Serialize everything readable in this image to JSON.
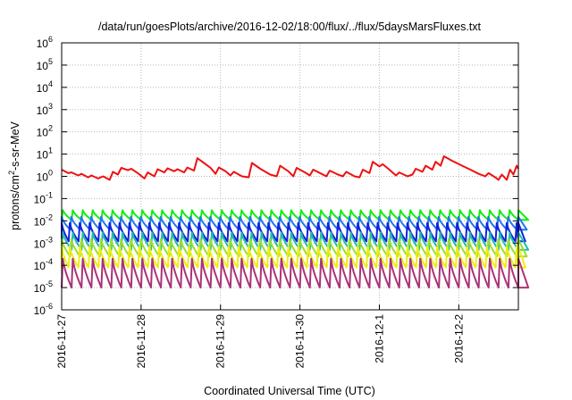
{
  "chart_data": {
    "type": "line",
    "title": "/data/run/goesPlots/archive/2016-12-02/18:00/flux/../flux/5daysMarsFluxes.txt",
    "xlabel": "Coordinated Universal Time (UTC)",
    "ylabel": {
      "base": "protons/cm",
      "sup": "2",
      "rest": "-s-sr-MeV"
    },
    "yscale": "log",
    "ylim": [
      1e-06,
      1000000.0
    ],
    "y_ticks": [
      {
        "exp": "-6",
        "value": -6
      },
      {
        "exp": "-5",
        "value": -5
      },
      {
        "exp": "-4",
        "value": -4
      },
      {
        "exp": "-3",
        "value": -3
      },
      {
        "exp": "-2",
        "value": -2
      },
      {
        "exp": "-1",
        "value": -1
      },
      {
        "exp": "0",
        "value": 0
      },
      {
        "exp": "1",
        "value": 1
      },
      {
        "exp": "2",
        "value": 2
      },
      {
        "exp": "3",
        "value": 3
      },
      {
        "exp": "4",
        "value": 4
      },
      {
        "exp": "5",
        "value": 5
      },
      {
        "exp": "6",
        "value": 6
      }
    ],
    "y_tick_base": "10",
    "xlim": [
      "2016-11-27",
      "2016-12-02T18:00"
    ],
    "x_ticks": [
      "2016-11-27",
      "2016-11-28",
      "2016-11-29",
      "2016-11-30",
      "2016-12-1",
      "2016-12-2"
    ],
    "grid": true,
    "series": [
      {
        "color": "#ee1111",
        "points": [
          [
            "2016-11-27T00:00",
            2.0
          ],
          [
            "2016-11-27T02:00",
            1.4
          ],
          [
            "2016-11-27T03:00",
            1.5
          ],
          [
            "2016-11-27T05:00",
            1.1
          ],
          [
            "2016-11-27T06:00",
            1.3
          ],
          [
            "2016-11-27T08:00",
            0.9
          ],
          [
            "2016-11-27T09:00",
            1.1
          ],
          [
            "2016-11-27T11:00",
            0.8
          ],
          [
            "2016-11-27T12:30",
            1.0
          ],
          [
            "2016-11-27T14:30",
            0.7
          ],
          [
            "2016-11-27T15:30",
            1.6
          ],
          [
            "2016-11-27T17:00",
            1.2
          ],
          [
            "2016-11-27T18:00",
            2.4
          ],
          [
            "2016-11-27T20:00",
            1.9
          ],
          [
            "2016-11-27T21:00",
            2.2
          ],
          [
            "2016-11-27T23:00",
            1.4
          ],
          [
            "2016-11-28T01:00",
            0.8
          ],
          [
            "2016-11-28T02:00",
            1.5
          ],
          [
            "2016-11-28T04:00",
            1.0
          ],
          [
            "2016-11-28T05:00",
            2.1
          ],
          [
            "2016-11-28T07:00",
            1.5
          ],
          [
            "2016-11-28T08:00",
            2.3
          ],
          [
            "2016-11-28T10:00",
            1.7
          ],
          [
            "2016-11-28T11:00",
            2.1
          ],
          [
            "2016-11-28T13:00",
            1.5
          ],
          [
            "2016-11-28T14:00",
            2.5
          ],
          [
            "2016-11-28T16:00",
            1.8
          ],
          [
            "2016-11-28T17:00",
            6.5
          ],
          [
            "2016-11-28T19:00",
            4.0
          ],
          [
            "2016-11-28T21:00",
            2.4
          ],
          [
            "2016-11-28T22:30",
            1.3
          ],
          [
            "2016-11-28T23:30",
            2.5
          ],
          [
            "2016-11-29T01:30",
            1.7
          ],
          [
            "2016-11-29T03:00",
            1.1
          ],
          [
            "2016-11-29T04:00",
            1.6
          ],
          [
            "2016-11-29T06:30",
            1.0
          ],
          [
            "2016-11-29T08:30",
            0.9
          ],
          [
            "2016-11-29T09:30",
            4.0
          ],
          [
            "2016-11-29T12:00",
            2.2
          ],
          [
            "2016-11-29T15:00",
            1.2
          ],
          [
            "2016-11-29T17:00",
            1.0
          ],
          [
            "2016-11-29T18:00",
            3.0
          ],
          [
            "2016-11-29T20:30",
            1.7
          ],
          [
            "2016-11-29T22:00",
            1.0
          ],
          [
            "2016-11-29T23:00",
            2.4
          ],
          [
            "2016-11-30T01:30",
            1.5
          ],
          [
            "2016-11-30T03:00",
            1.1
          ],
          [
            "2016-11-30T04:00",
            2.0
          ],
          [
            "2016-11-30T06:30",
            1.3
          ],
          [
            "2016-11-30T08:00",
            1.0
          ],
          [
            "2016-11-30T09:00",
            1.8
          ],
          [
            "2016-11-30T11:30",
            1.2
          ],
          [
            "2016-11-30T13:00",
            1.0
          ],
          [
            "2016-11-30T14:00",
            1.6
          ],
          [
            "2016-11-30T16:30",
            1.0
          ],
          [
            "2016-11-30T18:00",
            0.9
          ],
          [
            "2016-11-30T19:00",
            2.0
          ],
          [
            "2016-11-30T21:00",
            1.4
          ],
          [
            "2016-11-30T22:00",
            4.5
          ],
          [
            "2016-12-01T00:00",
            2.8
          ],
          [
            "2016-12-01T01:00",
            3.5
          ],
          [
            "2016-12-01T03:00",
            2.0
          ],
          [
            "2016-12-01T05:00",
            1.1
          ],
          [
            "2016-12-01T06:00",
            1.5
          ],
          [
            "2016-12-01T08:30",
            1.0
          ],
          [
            "2016-12-01T10:00",
            1.2
          ],
          [
            "2016-12-01T11:00",
            2.2
          ],
          [
            "2016-12-01T13:00",
            1.6
          ],
          [
            "2016-12-01T14:00",
            3.0
          ],
          [
            "2016-12-01T16:00",
            2.0
          ],
          [
            "2016-12-01T17:00",
            4.5
          ],
          [
            "2016-12-01T18:30",
            3.0
          ],
          [
            "2016-12-01T19:30",
            8.0
          ],
          [
            "2016-12-01T22:00",
            5.0
          ],
          [
            "2016-12-02T01:00",
            3.0
          ],
          [
            "2016-12-02T03:30",
            2.0
          ],
          [
            "2016-12-02T06:00",
            1.3
          ],
          [
            "2016-12-02T08:00",
            1.0
          ],
          [
            "2016-12-02T09:00",
            1.4
          ],
          [
            "2016-12-02T11:00",
            0.9
          ],
          [
            "2016-12-02T12:00",
            0.7
          ],
          [
            "2016-12-02T13:00",
            1.2
          ],
          [
            "2016-12-02T14:30",
            0.7
          ],
          [
            "2016-12-02T15:30",
            2.0
          ],
          [
            "2016-12-02T16:30",
            1.2
          ],
          [
            "2016-12-02T17:30",
            3.0
          ],
          [
            "2016-12-02T18:00",
            2.2
          ]
        ]
      },
      {
        "color": "#11ee11",
        "peak": 0.03,
        "trough": 0.011
      },
      {
        "color": "#2277ee",
        "peak": 0.015,
        "trough": 0.004
      },
      {
        "color": "#1122dd",
        "peak": 0.008,
        "trough": 0.0012
      },
      {
        "color": "#22bbaa",
        "peak": 0.003,
        "trough": 0.0005
      },
      {
        "color": "#99dd33",
        "peak": 0.0015,
        "trough": 0.00025
      },
      {
        "color": "#eeee11",
        "peak": 0.0007,
        "trough": 8e-05
      },
      {
        "color": "#aa3377",
        "peak": 0.0002,
        "trough": 1e-05
      }
    ]
  }
}
